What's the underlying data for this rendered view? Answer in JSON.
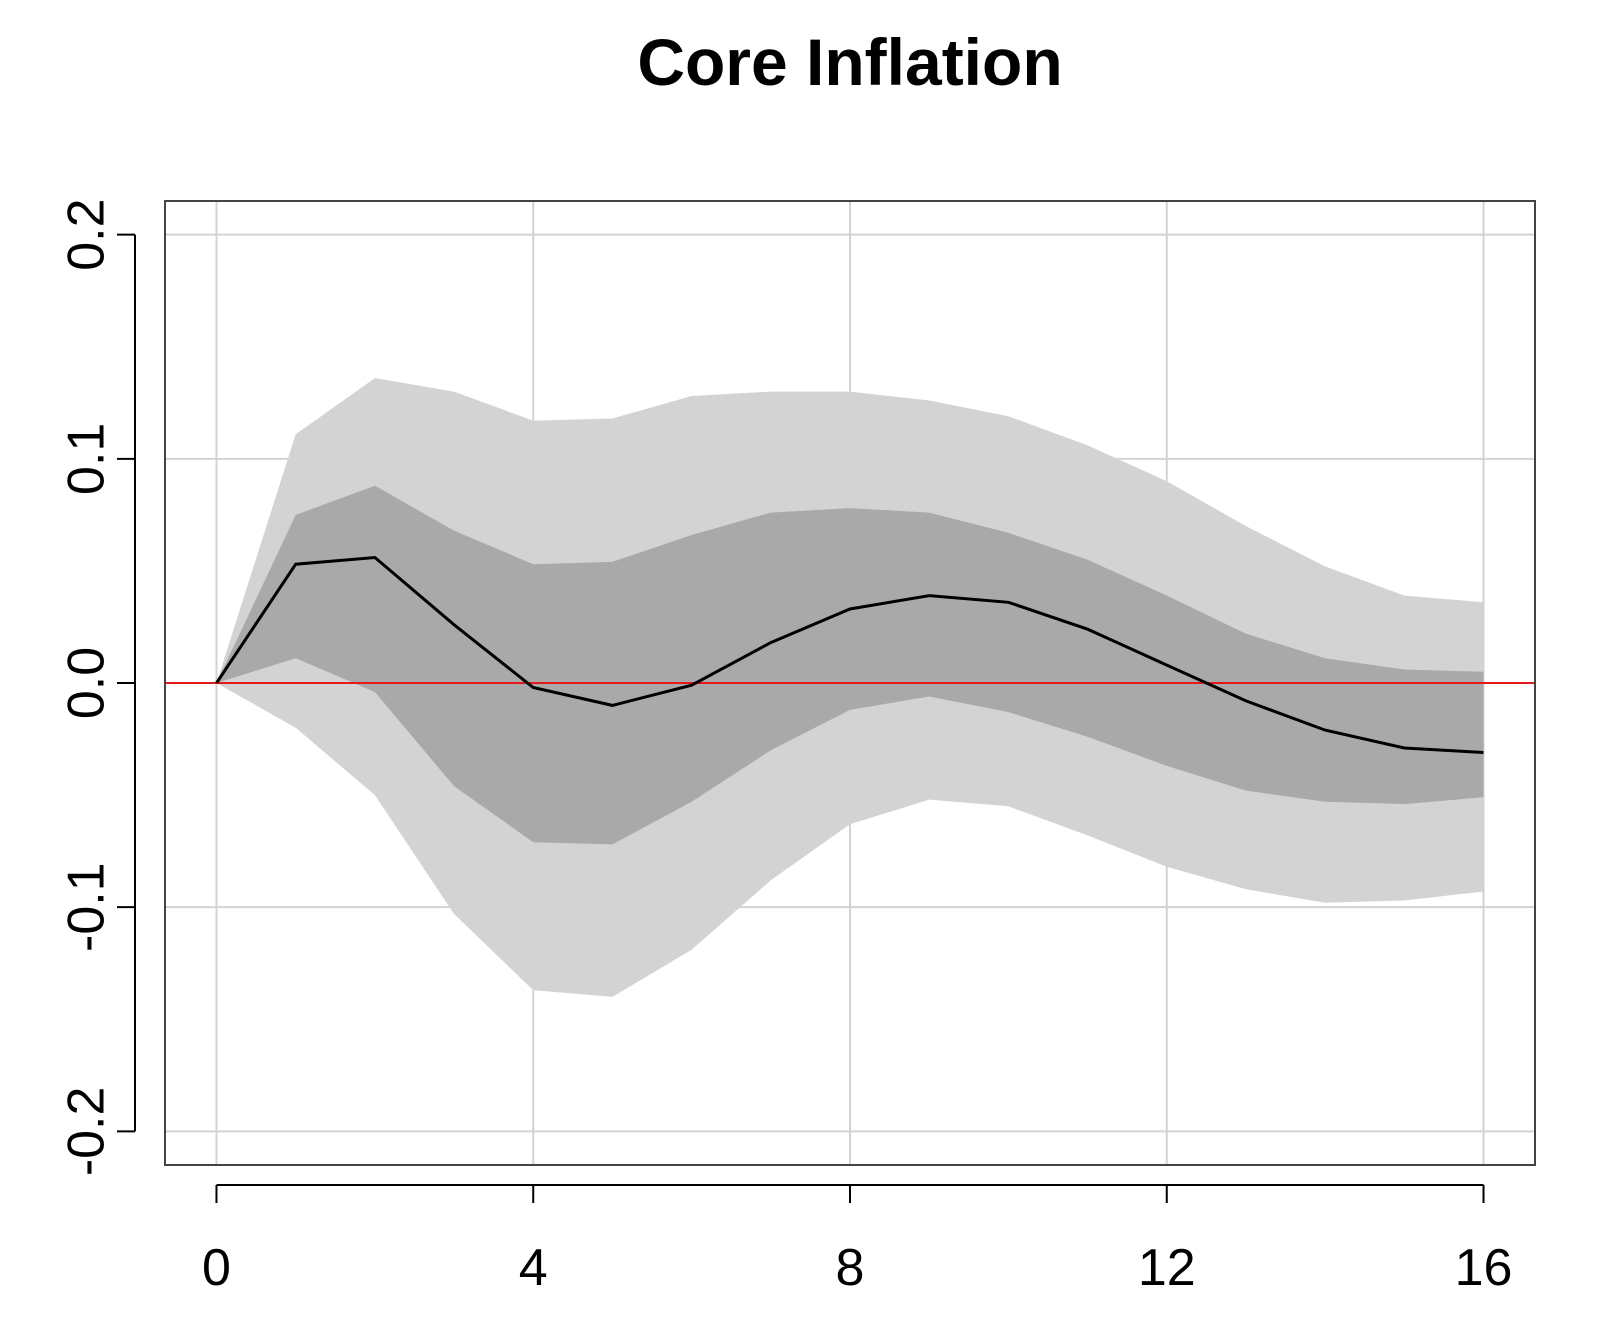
{
  "chart_data": {
    "type": "area",
    "title": "Core Inflation",
    "xlabel": "",
    "ylabel": "",
    "xlim": [
      -0.65,
      16.65
    ],
    "ylim": [
      -0.215,
      0.215
    ],
    "x_ticks": [
      0,
      4,
      8,
      12,
      16
    ],
    "x_tick_labels": [
      "0",
      "4",
      "8",
      "12",
      "16"
    ],
    "y_ticks": [
      -0.2,
      -0.1,
      0.0,
      0.1,
      0.2
    ],
    "y_tick_labels": [
      "-0.2",
      "-0.1",
      "0.0",
      "0.1",
      "0.2"
    ],
    "grid": true,
    "reference_line": {
      "y": 0.0,
      "color": "#e31a1c"
    },
    "x": [
      0,
      1,
      2,
      3,
      4,
      5,
      6,
      7,
      8,
      9,
      10,
      11,
      12,
      13,
      14,
      15,
      16
    ],
    "median": [
      0.0,
      0.053,
      0.056,
      0.026,
      -0.002,
      -0.01,
      -0.001,
      0.018,
      0.033,
      0.039,
      0.036,
      0.024,
      0.008,
      -0.008,
      -0.021,
      -0.029,
      -0.031
    ],
    "bands": [
      {
        "color": "#d3d3d3",
        "upper": [
          0.0,
          0.111,
          0.136,
          0.13,
          0.117,
          0.118,
          0.128,
          0.13,
          0.13,
          0.126,
          0.119,
          0.106,
          0.09,
          0.07,
          0.052,
          0.039,
          0.036
        ],
        "lower": [
          0.0,
          -0.02,
          -0.05,
          -0.103,
          -0.137,
          -0.14,
          -0.119,
          -0.088,
          -0.063,
          -0.052,
          -0.055,
          -0.068,
          -0.082,
          -0.092,
          -0.098,
          -0.097,
          -0.093
        ]
      },
      {
        "color": "#a9a9a9",
        "upper": [
          0.0,
          0.075,
          0.088,
          0.068,
          0.053,
          0.054,
          0.066,
          0.076,
          0.078,
          0.076,
          0.067,
          0.055,
          0.039,
          0.022,
          0.011,
          0.006,
          0.005
        ],
        "lower": [
          0.0,
          0.011,
          -0.004,
          -0.046,
          -0.071,
          -0.072,
          -0.053,
          -0.03,
          -0.012,
          -0.006,
          -0.013,
          -0.024,
          -0.037,
          -0.048,
          -0.053,
          -0.054,
          -0.051
        ]
      }
    ],
    "colors": {
      "median_line": "#000000",
      "outer_band": "#d3d3d3",
      "inner_band": "#a9a9a9",
      "zero_line": "#e31a1c"
    }
  }
}
